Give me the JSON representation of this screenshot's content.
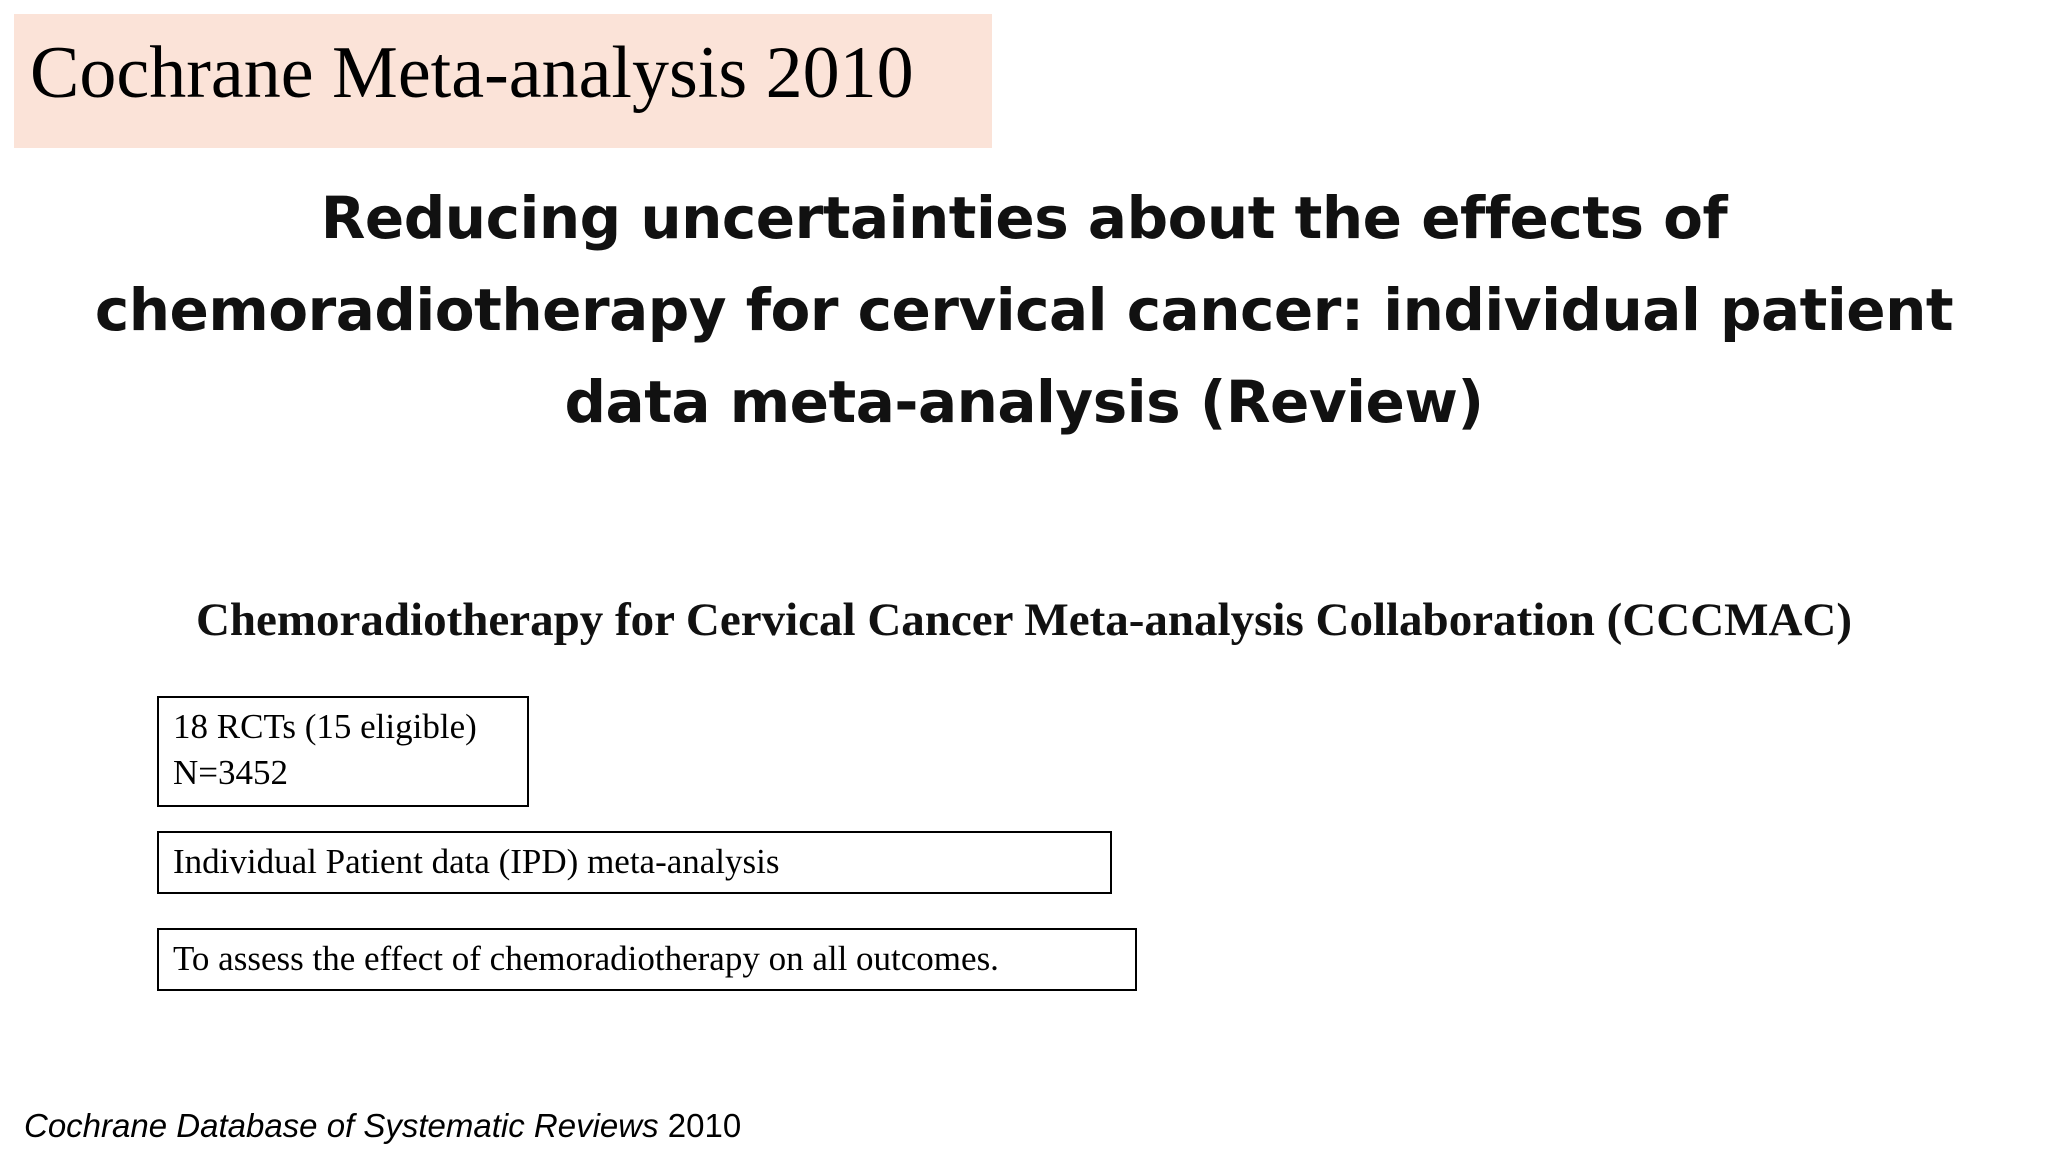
{
  "slide": {
    "title": "Cochrane Meta-analysis 2010",
    "banner_color": "#fbe3d8"
  },
  "review": {
    "title_line1": "Reducing uncertainties about the effects of",
    "title_line2": "chemoradiotherapy for cervical cancer: individual patient",
    "title_line3": "data meta-analysis (Review)",
    "collaboration": "Chemoradiotherapy for Cervical Cancer Meta-analysis Collaboration (CCCMAC)"
  },
  "boxes": {
    "rcts_line1": "18 RCTs (15 eligible)",
    "rcts_line2": "N=3452",
    "ipd": "Individual Patient data (IPD) meta-analysis",
    "aim": "To assess the effect of chemoradiotherapy on all outcomes."
  },
  "citation": {
    "journal": "Cochrane Database of Systematic Reviews",
    "year": "2010"
  }
}
